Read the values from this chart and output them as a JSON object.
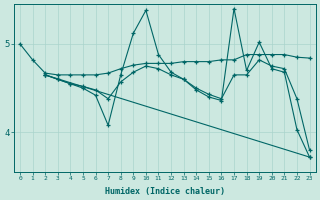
{
  "xlabel": "Humidex (Indice chaleur)",
  "background_color": "#cce8e0",
  "line_color": "#006666",
  "grid_color": "#aad4cc",
  "xlim": [
    -0.5,
    23.5
  ],
  "ylim": [
    3.55,
    5.45
  ],
  "xticks": [
    0,
    1,
    2,
    3,
    4,
    5,
    6,
    7,
    8,
    9,
    10,
    11,
    12,
    13,
    14,
    15,
    16,
    17,
    18,
    19,
    20,
    21,
    22,
    23
  ],
  "yticks": [
    4,
    5
  ],
  "lines": [
    {
      "x": [
        0,
        1,
        2,
        3,
        4,
        5,
        6,
        7,
        8,
        9,
        10,
        11,
        12,
        13,
        14,
        15,
        16,
        17,
        18,
        19,
        20,
        21,
        22,
        23
      ],
      "y": [
        5.0,
        4.82,
        4.67,
        4.65,
        4.65,
        4.65,
        4.65,
        4.67,
        4.72,
        4.76,
        4.78,
        4.78,
        4.78,
        4.8,
        4.8,
        4.8,
        4.82,
        4.82,
        4.88,
        4.88,
        4.88,
        4.88,
        4.85,
        4.84
      ]
    },
    {
      "x": [
        2,
        3,
        4,
        5,
        6,
        7,
        8,
        9,
        10,
        11,
        12,
        13,
        14,
        15,
        16,
        17,
        18,
        19,
        20,
        21,
        22,
        23
      ],
      "y": [
        4.65,
        4.6,
        4.55,
        4.5,
        4.42,
        4.08,
        4.65,
        5.12,
        5.38,
        4.88,
        4.68,
        4.6,
        4.48,
        4.4,
        4.36,
        5.4,
        4.7,
        5.02,
        4.72,
        4.68,
        4.03,
        3.72
      ]
    },
    {
      "x": [
        2,
        3,
        4,
        5,
        6,
        7,
        8,
        9,
        10,
        11,
        12,
        13,
        14,
        15,
        16,
        17,
        18,
        19,
        20,
        21,
        22,
        23
      ],
      "y": [
        4.65,
        4.6,
        4.55,
        4.52,
        4.48,
        4.38,
        4.57,
        4.68,
        4.75,
        4.72,
        4.65,
        4.6,
        4.5,
        4.43,
        4.38,
        4.65,
        4.65,
        4.82,
        4.75,
        4.72,
        4.38,
        3.8
      ]
    },
    {
      "x": [
        2,
        23
      ],
      "y": [
        4.65,
        3.72
      ]
    }
  ]
}
